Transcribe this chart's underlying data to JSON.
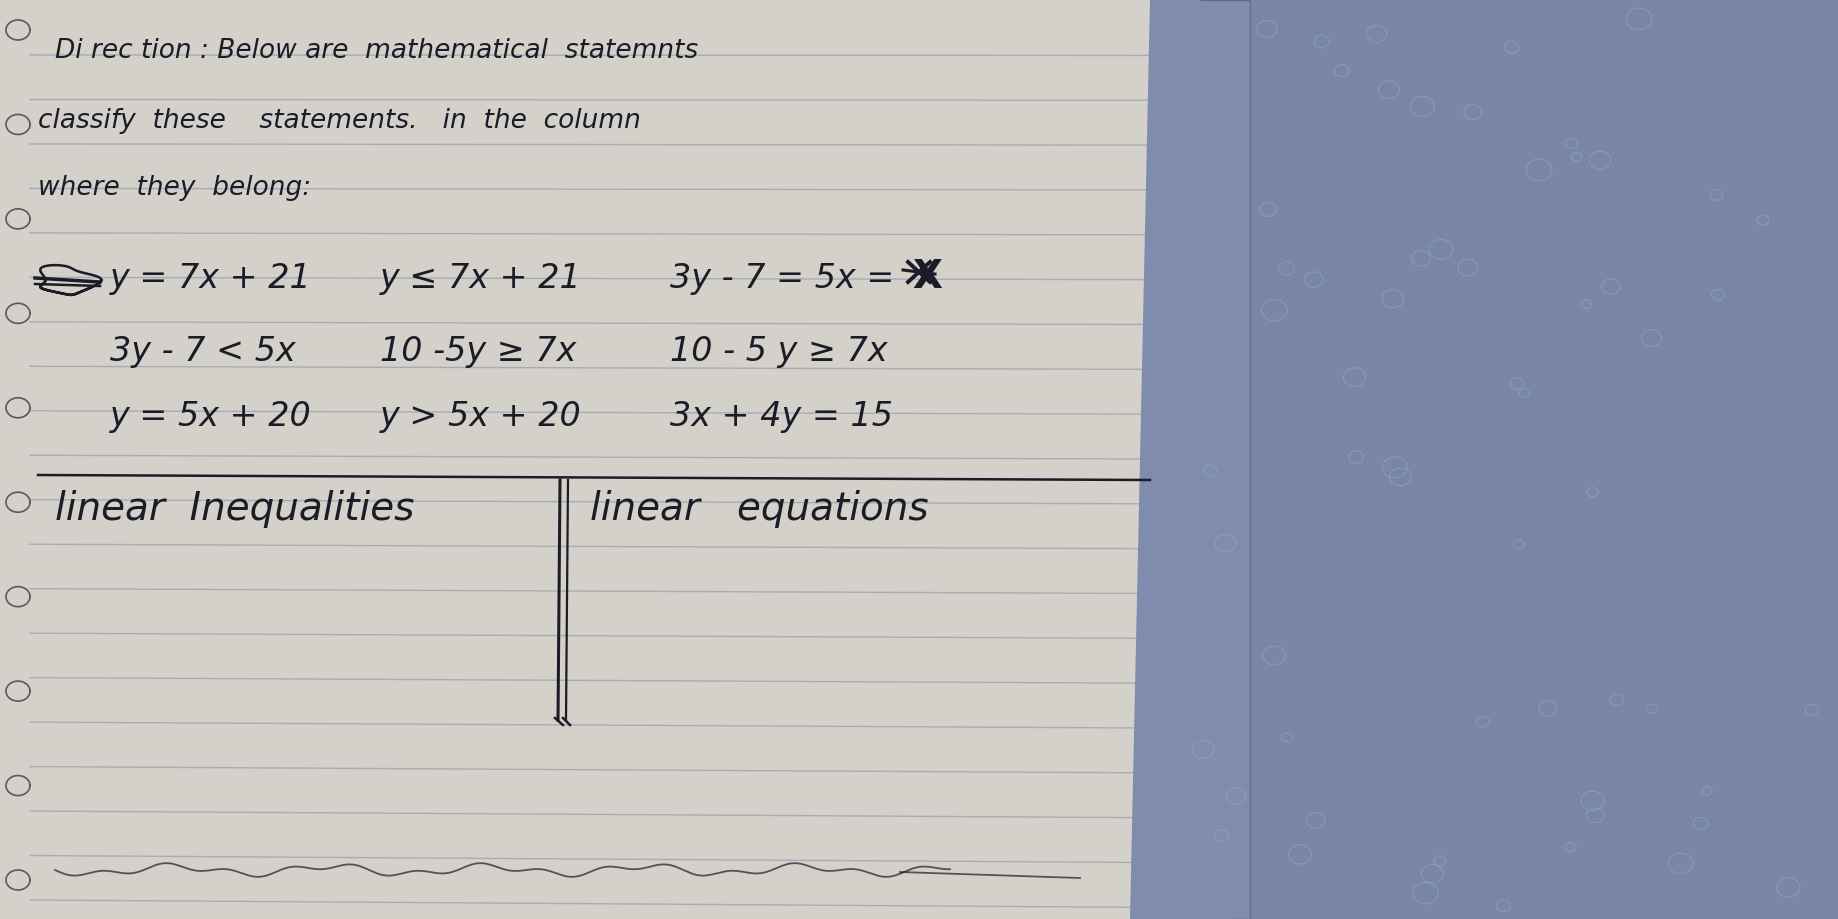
{
  "bg_color": "#b0aca6",
  "paper_color": "#d4d0ca",
  "line_color": "#8090a8",
  "line_alpha": 0.55,
  "text_color": "#1c1c28",
  "fabric_color": "#7080a8",
  "fabric_color2": "#9aabcc",
  "figsize": [
    18.38,
    9.19
  ],
  "dpi": 100,
  "title_line1": "Di rec tion : Below are  mathematical  statemnts",
  "title_line2": "classify  these    statements.   in  the  column",
  "title_line3": "where  they  belong:",
  "r1c1": "y = 7x + 21",
  "r1c2": "y ≤ 7x + 21",
  "r1c3": "3y - 7 = 5x =",
  "r2c1": "3y - 7 < 5x",
  "r2c2": "10 -5y ≥ 7x",
  "r2c3": "10 - 5 y ≥ 7x",
  "r3c1": "y = 5x + 20",
  "r3c2": "y > 5x + 20",
  "r3c3": "3x + 4y = 15",
  "label_left": "linear  Inequalities",
  "label_right": "linear   equations"
}
